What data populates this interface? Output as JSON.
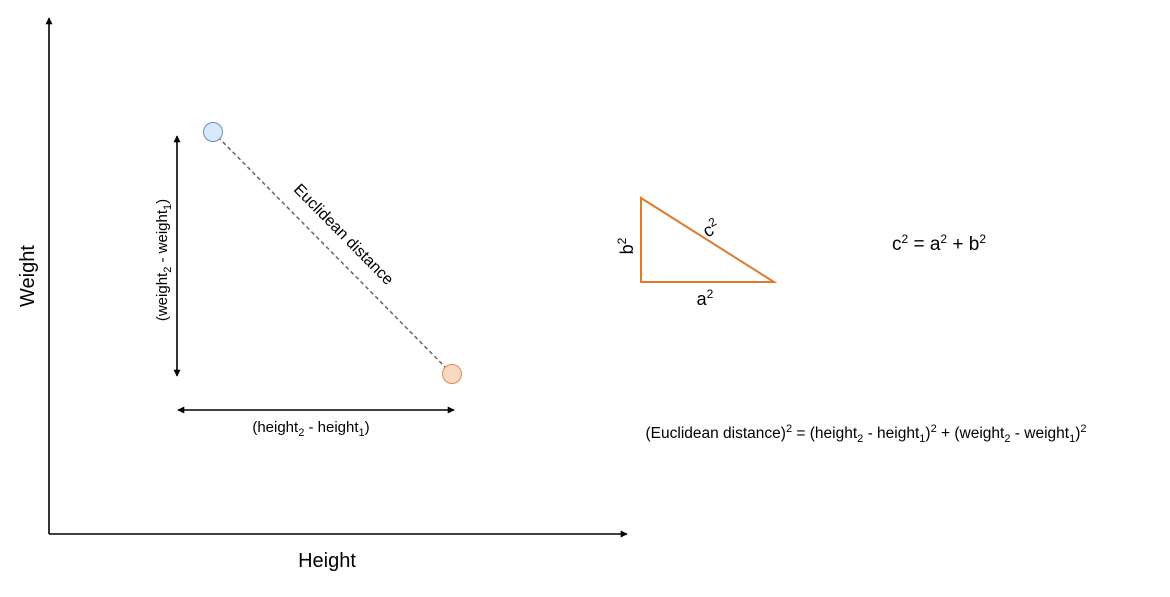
{
  "axes": {
    "x_label": "Height",
    "y_label": "Weight"
  },
  "points": [
    {
      "fill": "#dae8fc",
      "stroke": "#6c8ebf"
    },
    {
      "fill": "#fad9c1",
      "stroke": "#e08a5a"
    }
  ],
  "distance_label": "Euclidean distance",
  "vertical_difference": {
    "pre": "(weight",
    "sub1": "2",
    "mid": " - weight",
    "sub2": "1",
    "post": ")"
  },
  "horizontal_difference": {
    "pre": "(height",
    "sub1": "2",
    "mid": " - height",
    "sub2": "1",
    "post": ")"
  },
  "triangle": {
    "stroke": "#e07b2e",
    "hypotenuse_base": "c",
    "hypotenuse_exp": "2",
    "base_base": "a",
    "base_exp": "2",
    "side_base": "b",
    "side_exp": "2"
  },
  "pythagoras": {
    "c": "c",
    "c_exp": "2",
    "eq": " = ",
    "a": "a",
    "a_exp": "2",
    "plus": " + ",
    "b": "b",
    "b_exp": "2"
  },
  "formula": {
    "lhs": "(Euclidean distance)",
    "lhs_exp": "2",
    "eq": " = ",
    "t1_pre": "(height",
    "t1_sub2": "2",
    "t1_mid": " - height",
    "t1_sub1": "1",
    "t1_post": ")",
    "t1_exp": "2",
    "plus": " + ",
    "t2_pre": "(weight",
    "t2_sub2": "2",
    "t2_mid": " - weight",
    "t2_sub1": "1",
    "t2_post": ")",
    "t2_exp": "2"
  }
}
